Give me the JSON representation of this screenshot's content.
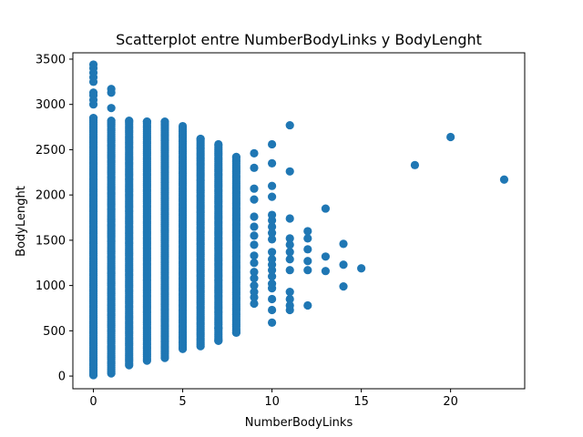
{
  "chart_data": {
    "type": "scatter",
    "title": "Scatterplot entre NumberBodyLinks y BodyLenght",
    "xlabel": "NumberBodyLinks",
    "ylabel": "BodyLenght",
    "xlim": [
      -1.15,
      24.15
    ],
    "ylim": [
      -140,
      3570
    ],
    "xticks": [
      0,
      5,
      10,
      15,
      20
    ],
    "yticks": [
      0,
      500,
      1000,
      1500,
      2000,
      2500,
      3000,
      3500
    ],
    "grid": false,
    "legend": "none",
    "marker_color": "#1f77b4",
    "columns": [
      {
        "x": 0,
        "ymin": 10,
        "ymax": 2850,
        "extra": [
          3000,
          3050,
          3100,
          3130,
          3250,
          3300,
          3350,
          3400,
          3440
        ]
      },
      {
        "x": 1,
        "ymin": 30,
        "ymax": 2820,
        "extra": [
          2960,
          3130,
          3170
        ]
      },
      {
        "x": 2,
        "ymin": 120,
        "ymax": 2820,
        "extra": []
      },
      {
        "x": 3,
        "ymin": 170,
        "ymax": 2810,
        "extra": []
      },
      {
        "x": 4,
        "ymin": 200,
        "ymax": 2810,
        "extra": []
      },
      {
        "x": 5,
        "ymin": 300,
        "ymax": 2760,
        "extra": []
      },
      {
        "x": 6,
        "ymin": 330,
        "ymax": 2620,
        "extra": []
      },
      {
        "x": 7,
        "ymin": 390,
        "ymax": 2560,
        "extra": [
          390,
          530
        ]
      },
      {
        "x": 8,
        "ymin": 480,
        "ymax": 2420,
        "extra": [
          480
        ]
      }
    ],
    "points": [
      {
        "x": 9,
        "y": 800
      },
      {
        "x": 9,
        "y": 870
      },
      {
        "x": 9,
        "y": 930
      },
      {
        "x": 9,
        "y": 1000
      },
      {
        "x": 9,
        "y": 1080
      },
      {
        "x": 9,
        "y": 1150
      },
      {
        "x": 9,
        "y": 1250
      },
      {
        "x": 9,
        "y": 1330
      },
      {
        "x": 9,
        "y": 1450
      },
      {
        "x": 9,
        "y": 1550
      },
      {
        "x": 9,
        "y": 1650
      },
      {
        "x": 9,
        "y": 1760
      },
      {
        "x": 9,
        "y": 1950
      },
      {
        "x": 9,
        "y": 2070
      },
      {
        "x": 9,
        "y": 2300
      },
      {
        "x": 9,
        "y": 2460
      },
      {
        "x": 10,
        "y": 590
      },
      {
        "x": 10,
        "y": 730
      },
      {
        "x": 10,
        "y": 850
      },
      {
        "x": 10,
        "y": 970
      },
      {
        "x": 10,
        "y": 1020
      },
      {
        "x": 10,
        "y": 1100
      },
      {
        "x": 10,
        "y": 1170
      },
      {
        "x": 10,
        "y": 1230
      },
      {
        "x": 10,
        "y": 1290
      },
      {
        "x": 10,
        "y": 1370
      },
      {
        "x": 10,
        "y": 1510
      },
      {
        "x": 10,
        "y": 1580
      },
      {
        "x": 10,
        "y": 1650
      },
      {
        "x": 10,
        "y": 1720
      },
      {
        "x": 10,
        "y": 1780
      },
      {
        "x": 10,
        "y": 1980
      },
      {
        "x": 10,
        "y": 2100
      },
      {
        "x": 10,
        "y": 2350
      },
      {
        "x": 10,
        "y": 2560
      },
      {
        "x": 11,
        "y": 730
      },
      {
        "x": 11,
        "y": 780
      },
      {
        "x": 11,
        "y": 850
      },
      {
        "x": 11,
        "y": 930
      },
      {
        "x": 11,
        "y": 1170
      },
      {
        "x": 11,
        "y": 1290
      },
      {
        "x": 11,
        "y": 1370
      },
      {
        "x": 11,
        "y": 1450
      },
      {
        "x": 11,
        "y": 1520
      },
      {
        "x": 11,
        "y": 1740
      },
      {
        "x": 11,
        "y": 2260
      },
      {
        "x": 11,
        "y": 2770
      },
      {
        "x": 12,
        "y": 780
      },
      {
        "x": 12,
        "y": 1170
      },
      {
        "x": 12,
        "y": 1270
      },
      {
        "x": 12,
        "y": 1400
      },
      {
        "x": 12,
        "y": 1520
      },
      {
        "x": 12,
        "y": 1600
      },
      {
        "x": 13,
        "y": 1160
      },
      {
        "x": 13,
        "y": 1320
      },
      {
        "x": 13,
        "y": 1850
      },
      {
        "x": 14,
        "y": 990
      },
      {
        "x": 14,
        "y": 1230
      },
      {
        "x": 14,
        "y": 1460
      },
      {
        "x": 15,
        "y": 1190
      },
      {
        "x": 18,
        "y": 2330
      },
      {
        "x": 20,
        "y": 2640
      },
      {
        "x": 23,
        "y": 2170
      }
    ]
  }
}
